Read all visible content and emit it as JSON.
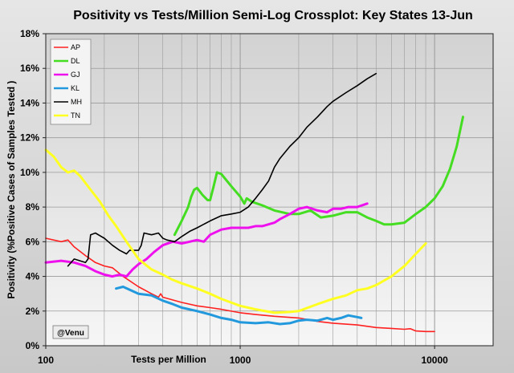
{
  "chart_data": {
    "type": "line",
    "title": "Positivity vs Tests/Million Semi-Log Crossplot: Key States  13-Jun",
    "xlabel": "Tests per Million",
    "ylabel": "Positivity (%Positive Cases of Samples Tested )",
    "xscale": "log",
    "xlim": [
      100,
      20000
    ],
    "ylim": [
      0,
      18
    ],
    "x_ticks": [
      100,
      1000,
      10000
    ],
    "x_tick_labels": [
      "100",
      "1000",
      "10000"
    ],
    "y_ticks": [
      0,
      2,
      4,
      6,
      8,
      10,
      12,
      14,
      16,
      18
    ],
    "y_tick_labels": [
      "0%",
      "2%",
      "4%",
      "6%",
      "8%",
      "10%",
      "12%",
      "14%",
      "16%",
      "18%"
    ],
    "grid": true,
    "legend_position": "top-left",
    "credit": "@Venu",
    "series": [
      {
        "name": "AP",
        "color": "#ff2020",
        "width": 1.6,
        "points": [
          [
            100,
            6.2
          ],
          [
            120,
            6.0
          ],
          [
            130,
            6.1
          ],
          [
            140,
            5.7
          ],
          [
            160,
            5.2
          ],
          [
            180,
            4.8
          ],
          [
            200,
            4.6
          ],
          [
            220,
            4.5
          ],
          [
            250,
            4.0
          ],
          [
            300,
            3.4
          ],
          [
            350,
            3.0
          ],
          [
            380,
            2.8
          ],
          [
            390,
            3.0
          ],
          [
            400,
            2.8
          ],
          [
            500,
            2.5
          ],
          [
            600,
            2.3
          ],
          [
            700,
            2.2
          ],
          [
            800,
            2.1
          ],
          [
            1000,
            1.9
          ],
          [
            1200,
            1.8
          ],
          [
            1500,
            1.7
          ],
          [
            2000,
            1.6
          ],
          [
            2500,
            1.4
          ],
          [
            3000,
            1.3
          ],
          [
            4000,
            1.2
          ],
          [
            5000,
            1.05
          ],
          [
            6000,
            1.0
          ],
          [
            7000,
            0.95
          ],
          [
            7500,
            0.98
          ],
          [
            8000,
            0.85
          ],
          [
            9000,
            0.82
          ],
          [
            10000,
            0.82
          ]
        ]
      },
      {
        "name": "DL",
        "color": "#44dd22",
        "width": 3,
        "points": [
          [
            460,
            6.4
          ],
          [
            500,
            7.2
          ],
          [
            540,
            8.0
          ],
          [
            560,
            8.6
          ],
          [
            580,
            9.0
          ],
          [
            600,
            9.1
          ],
          [
            640,
            8.7
          ],
          [
            680,
            8.4
          ],
          [
            700,
            8.4
          ],
          [
            730,
            9.2
          ],
          [
            760,
            10.0
          ],
          [
            800,
            9.9
          ],
          [
            900,
            9.2
          ],
          [
            1000,
            8.6
          ],
          [
            1050,
            8.2
          ],
          [
            1080,
            8.5
          ],
          [
            1150,
            8.3
          ],
          [
            1300,
            8.1
          ],
          [
            1500,
            7.8
          ],
          [
            1800,
            7.6
          ],
          [
            2000,
            7.6
          ],
          [
            2300,
            7.8
          ],
          [
            2600,
            7.4
          ],
          [
            3000,
            7.5
          ],
          [
            3500,
            7.7
          ],
          [
            4000,
            7.7
          ],
          [
            4500,
            7.4
          ],
          [
            5000,
            7.2
          ],
          [
            5500,
            7.0
          ],
          [
            6000,
            7.0
          ],
          [
            7000,
            7.1
          ],
          [
            8000,
            7.6
          ],
          [
            9000,
            8.0
          ],
          [
            10000,
            8.5
          ],
          [
            11000,
            9.2
          ],
          [
            12000,
            10.2
          ],
          [
            13000,
            11.5
          ],
          [
            14000,
            13.2
          ]
        ]
      },
      {
        "name": "GJ",
        "color": "#ee11ee",
        "width": 3,
        "points": [
          [
            100,
            4.8
          ],
          [
            120,
            4.9
          ],
          [
            140,
            4.8
          ],
          [
            160,
            4.6
          ],
          [
            180,
            4.3
          ],
          [
            200,
            4.1
          ],
          [
            220,
            4.0
          ],
          [
            240,
            4.1
          ],
          [
            260,
            4.0
          ],
          [
            280,
            4.4
          ],
          [
            300,
            4.7
          ],
          [
            330,
            5.0
          ],
          [
            360,
            5.4
          ],
          [
            400,
            5.8
          ],
          [
            450,
            6.0
          ],
          [
            500,
            5.9
          ],
          [
            550,
            6.0
          ],
          [
            600,
            6.1
          ],
          [
            650,
            6.0
          ],
          [
            700,
            6.4
          ],
          [
            800,
            6.7
          ],
          [
            900,
            6.8
          ],
          [
            1000,
            6.8
          ],
          [
            1100,
            6.8
          ],
          [
            1200,
            6.9
          ],
          [
            1300,
            6.9
          ],
          [
            1400,
            7.0
          ],
          [
            1500,
            7.1
          ],
          [
            1600,
            7.3
          ],
          [
            1800,
            7.6
          ],
          [
            2000,
            7.9
          ],
          [
            2200,
            8.0
          ],
          [
            2500,
            7.8
          ],
          [
            2800,
            7.7
          ],
          [
            3000,
            7.9
          ],
          [
            3300,
            7.9
          ],
          [
            3600,
            8.0
          ],
          [
            4000,
            8.0
          ],
          [
            4500,
            8.2
          ]
        ]
      },
      {
        "name": "KL",
        "color": "#2299dd",
        "width": 3,
        "points": [
          [
            230,
            3.3
          ],
          [
            250,
            3.4
          ],
          [
            300,
            3.0
          ],
          [
            350,
            2.9
          ],
          [
            400,
            2.6
          ],
          [
            450,
            2.4
          ],
          [
            500,
            2.2
          ],
          [
            600,
            2.0
          ],
          [
            700,
            1.8
          ],
          [
            800,
            1.6
          ],
          [
            900,
            1.5
          ],
          [
            1000,
            1.35
          ],
          [
            1200,
            1.3
          ],
          [
            1400,
            1.35
          ],
          [
            1600,
            1.25
          ],
          [
            1800,
            1.3
          ],
          [
            2000,
            1.45
          ],
          [
            2200,
            1.5
          ],
          [
            2500,
            1.45
          ],
          [
            2800,
            1.6
          ],
          [
            3000,
            1.5
          ],
          [
            3300,
            1.6
          ],
          [
            3600,
            1.75
          ],
          [
            4000,
            1.65
          ],
          [
            4200,
            1.6
          ]
        ]
      },
      {
        "name": "MH",
        "color": "#000000",
        "width": 1.6,
        "points": [
          [
            130,
            4.6
          ],
          [
            140,
            5.0
          ],
          [
            150,
            4.9
          ],
          [
            160,
            4.8
          ],
          [
            165,
            5.0
          ],
          [
            170,
            6.4
          ],
          [
            180,
            6.5
          ],
          [
            200,
            6.2
          ],
          [
            220,
            5.8
          ],
          [
            240,
            5.5
          ],
          [
            260,
            5.3
          ],
          [
            270,
            5.5
          ],
          [
            300,
            5.5
          ],
          [
            310,
            5.8
          ],
          [
            320,
            6.5
          ],
          [
            350,
            6.4
          ],
          [
            380,
            6.5
          ],
          [
            400,
            6.2
          ],
          [
            420,
            6.1
          ],
          [
            460,
            6.0
          ],
          [
            500,
            6.3
          ],
          [
            550,
            6.6
          ],
          [
            600,
            6.8
          ],
          [
            700,
            7.2
          ],
          [
            800,
            7.5
          ],
          [
            900,
            7.6
          ],
          [
            1000,
            7.7
          ],
          [
            1100,
            8.0
          ],
          [
            1200,
            8.5
          ],
          [
            1300,
            9.0
          ],
          [
            1400,
            9.5
          ],
          [
            1500,
            10.3
          ],
          [
            1600,
            10.8
          ],
          [
            1800,
            11.5
          ],
          [
            2000,
            12.0
          ],
          [
            2200,
            12.6
          ],
          [
            2500,
            13.2
          ],
          [
            2800,
            13.8
          ],
          [
            3000,
            14.1
          ],
          [
            3500,
            14.6
          ],
          [
            4000,
            15.0
          ],
          [
            4500,
            15.4
          ],
          [
            5000,
            15.7
          ]
        ]
      },
      {
        "name": "TN",
        "color": "#ffff22",
        "width": 3,
        "points": [
          [
            100,
            11.3
          ],
          [
            110,
            10.9
          ],
          [
            120,
            10.3
          ],
          [
            130,
            10.0
          ],
          [
            140,
            10.1
          ],
          [
            150,
            9.8
          ],
          [
            170,
            9.0
          ],
          [
            190,
            8.3
          ],
          [
            210,
            7.5
          ],
          [
            230,
            6.9
          ],
          [
            260,
            6.0
          ],
          [
            300,
            5.0
          ],
          [
            350,
            4.4
          ],
          [
            400,
            4.1
          ],
          [
            450,
            3.8
          ],
          [
            500,
            3.6
          ],
          [
            600,
            3.3
          ],
          [
            700,
            3.0
          ],
          [
            800,
            2.7
          ],
          [
            1000,
            2.3
          ],
          [
            1200,
            2.1
          ],
          [
            1500,
            1.9
          ],
          [
            1800,
            1.95
          ],
          [
            2000,
            2.0
          ],
          [
            2500,
            2.4
          ],
          [
            3000,
            2.7
          ],
          [
            3500,
            2.9
          ],
          [
            4000,
            3.2
          ],
          [
            4500,
            3.3
          ],
          [
            5000,
            3.5
          ],
          [
            6000,
            4.0
          ],
          [
            7000,
            4.6
          ],
          [
            8000,
            5.3
          ],
          [
            9000,
            5.9
          ]
        ]
      }
    ]
  }
}
